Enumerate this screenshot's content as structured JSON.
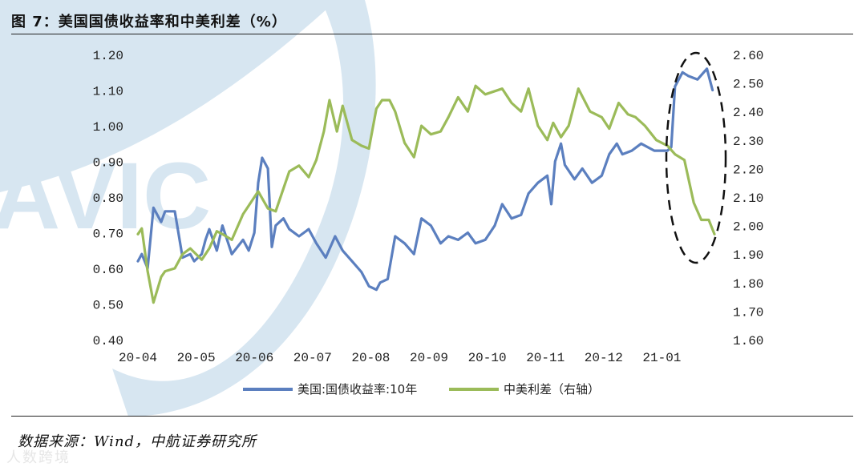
{
  "figure": {
    "title": "图 7：美国国债收益率和中美利差（%）",
    "source": "数据来源：Wind，中航证券研究所",
    "watermark_text": "AVIC",
    "brand_text": "人数跨境"
  },
  "colors": {
    "us_series": "#5b7fbf",
    "spread_series": "#9bbb59",
    "annotation": "#111111",
    "watermark": "#d7e6f1"
  },
  "chart_data": {
    "type": "line",
    "title": "",
    "x_ticks": [
      "20-04",
      "20-05",
      "20-06",
      "20-07",
      "20-08",
      "20-09",
      "20-10",
      "20-11",
      "20-12",
      "21-01"
    ],
    "x_range": [
      "2020-04-01",
      "2021-01-31"
    ],
    "y_left": {
      "range": [
        0.4,
        1.2
      ],
      "ticks": [
        "0.40",
        "0.50",
        "0.60",
        "0.70",
        "0.80",
        "0.90",
        "1.00",
        "1.10",
        "1.20"
      ]
    },
    "y_right": {
      "range": [
        1.6,
        2.6
      ],
      "ticks": [
        "1.60",
        "1.70",
        "1.80",
        "1.90",
        "2.00",
        "2.10",
        "2.20",
        "2.30",
        "2.40",
        "2.50",
        "2.60"
      ]
    },
    "grid": false,
    "legend_position": "bottom",
    "annotation": "dashed ellipse around January 2021",
    "series": [
      {
        "name": "美国:国债收益率:10年",
        "axis": "left",
        "x": [
          "2020-04-01",
          "2020-04-03",
          "2020-04-06",
          "2020-04-09",
          "2020-04-13",
          "2020-04-15",
          "2020-04-20",
          "2020-04-24",
          "2020-04-28",
          "2020-04-30",
          "2020-05-04",
          "2020-05-06",
          "2020-05-08",
          "2020-05-12",
          "2020-05-15",
          "2020-05-20",
          "2020-05-26",
          "2020-05-29",
          "2020-06-01",
          "2020-06-03",
          "2020-06-05",
          "2020-06-08",
          "2020-06-10",
          "2020-06-12",
          "2020-06-16",
          "2020-06-19",
          "2020-06-24",
          "2020-06-29",
          "2020-07-03",
          "2020-07-08",
          "2020-07-13",
          "2020-07-17",
          "2020-07-22",
          "2020-07-27",
          "2020-07-31",
          "2020-08-04",
          "2020-08-06",
          "2020-08-10",
          "2020-08-14",
          "2020-08-19",
          "2020-08-24",
          "2020-08-28",
          "2020-09-02",
          "2020-09-07",
          "2020-09-11",
          "2020-09-16",
          "2020-09-21",
          "2020-09-25",
          "2020-09-30",
          "2020-10-05",
          "2020-10-09",
          "2020-10-14",
          "2020-10-19",
          "2020-10-23",
          "2020-10-28",
          "2020-11-02",
          "2020-11-04",
          "2020-11-06",
          "2020-11-09",
          "2020-11-11",
          "2020-11-16",
          "2020-11-20",
          "2020-11-25",
          "2020-11-30",
          "2020-12-04",
          "2020-12-08",
          "2020-12-11",
          "2020-12-16",
          "2020-12-21",
          "2020-12-28",
          "2021-01-04",
          "2021-01-06",
          "2021-01-08",
          "2021-01-12",
          "2021-01-15",
          "2021-01-20",
          "2021-01-25",
          "2021-01-28"
        ],
        "values": [
          0.62,
          0.64,
          0.6,
          0.77,
          0.73,
          0.76,
          0.76,
          0.63,
          0.64,
          0.62,
          0.64,
          0.68,
          0.71,
          0.65,
          0.72,
          0.64,
          0.68,
          0.65,
          0.7,
          0.84,
          0.91,
          0.88,
          0.66,
          0.72,
          0.74,
          0.71,
          0.69,
          0.71,
          0.67,
          0.63,
          0.69,
          0.65,
          0.62,
          0.59,
          0.55,
          0.54,
          0.56,
          0.57,
          0.69,
          0.67,
          0.64,
          0.74,
          0.72,
          0.67,
          0.69,
          0.68,
          0.7,
          0.67,
          0.68,
          0.72,
          0.78,
          0.74,
          0.75,
          0.81,
          0.84,
          0.86,
          0.78,
          0.9,
          0.95,
          0.89,
          0.85,
          0.88,
          0.84,
          0.86,
          0.92,
          0.95,
          0.92,
          0.93,
          0.95,
          0.93,
          0.93,
          0.94,
          1.11,
          1.15,
          1.14,
          1.13,
          1.16,
          1.1
        ]
      },
      {
        "name": "中美利差（右轴）",
        "axis": "right",
        "x": [
          "2020-04-01",
          "2020-04-03",
          "2020-04-06",
          "2020-04-09",
          "2020-04-13",
          "2020-04-15",
          "2020-04-20",
          "2020-04-24",
          "2020-04-28",
          "2020-05-04",
          "2020-05-08",
          "2020-05-12",
          "2020-05-15",
          "2020-05-20",
          "2020-05-26",
          "2020-05-29",
          "2020-06-03",
          "2020-06-08",
          "2020-06-12",
          "2020-06-16",
          "2020-06-19",
          "2020-06-24",
          "2020-06-29",
          "2020-07-03",
          "2020-07-07",
          "2020-07-10",
          "2020-07-14",
          "2020-07-17",
          "2020-07-22",
          "2020-07-27",
          "2020-07-31",
          "2020-08-04",
          "2020-08-07",
          "2020-08-11",
          "2020-08-14",
          "2020-08-19",
          "2020-08-24",
          "2020-08-28",
          "2020-09-02",
          "2020-09-07",
          "2020-09-11",
          "2020-09-16",
          "2020-09-21",
          "2020-09-25",
          "2020-09-30",
          "2020-10-09",
          "2020-10-14",
          "2020-10-19",
          "2020-10-23",
          "2020-10-28",
          "2020-11-02",
          "2020-11-05",
          "2020-11-09",
          "2020-11-13",
          "2020-11-18",
          "2020-11-24",
          "2020-11-30",
          "2020-12-04",
          "2020-12-09",
          "2020-12-14",
          "2020-12-18",
          "2020-12-23",
          "2020-12-29",
          "2021-01-04",
          "2021-01-08",
          "2021-01-13",
          "2021-01-18",
          "2021-01-22",
          "2021-01-26",
          "2021-01-29"
        ],
        "values": [
          1.97,
          1.99,
          1.84,
          1.73,
          1.82,
          1.84,
          1.85,
          1.9,
          1.92,
          1.88,
          1.92,
          1.98,
          1.97,
          1.95,
          2.04,
          2.07,
          2.12,
          2.06,
          2.05,
          2.13,
          2.19,
          2.21,
          2.17,
          2.23,
          2.33,
          2.44,
          2.33,
          2.42,
          2.3,
          2.28,
          2.27,
          2.41,
          2.44,
          2.44,
          2.4,
          2.29,
          2.24,
          2.35,
          2.32,
          2.33,
          2.38,
          2.45,
          2.4,
          2.49,
          2.46,
          2.48,
          2.43,
          2.4,
          2.48,
          2.35,
          2.3,
          2.36,
          2.31,
          2.35,
          2.48,
          2.4,
          2.38,
          2.34,
          2.43,
          2.39,
          2.38,
          2.35,
          2.3,
          2.28,
          2.25,
          2.23,
          2.08,
          2.02,
          2.02,
          1.97
        ]
      }
    ]
  }
}
